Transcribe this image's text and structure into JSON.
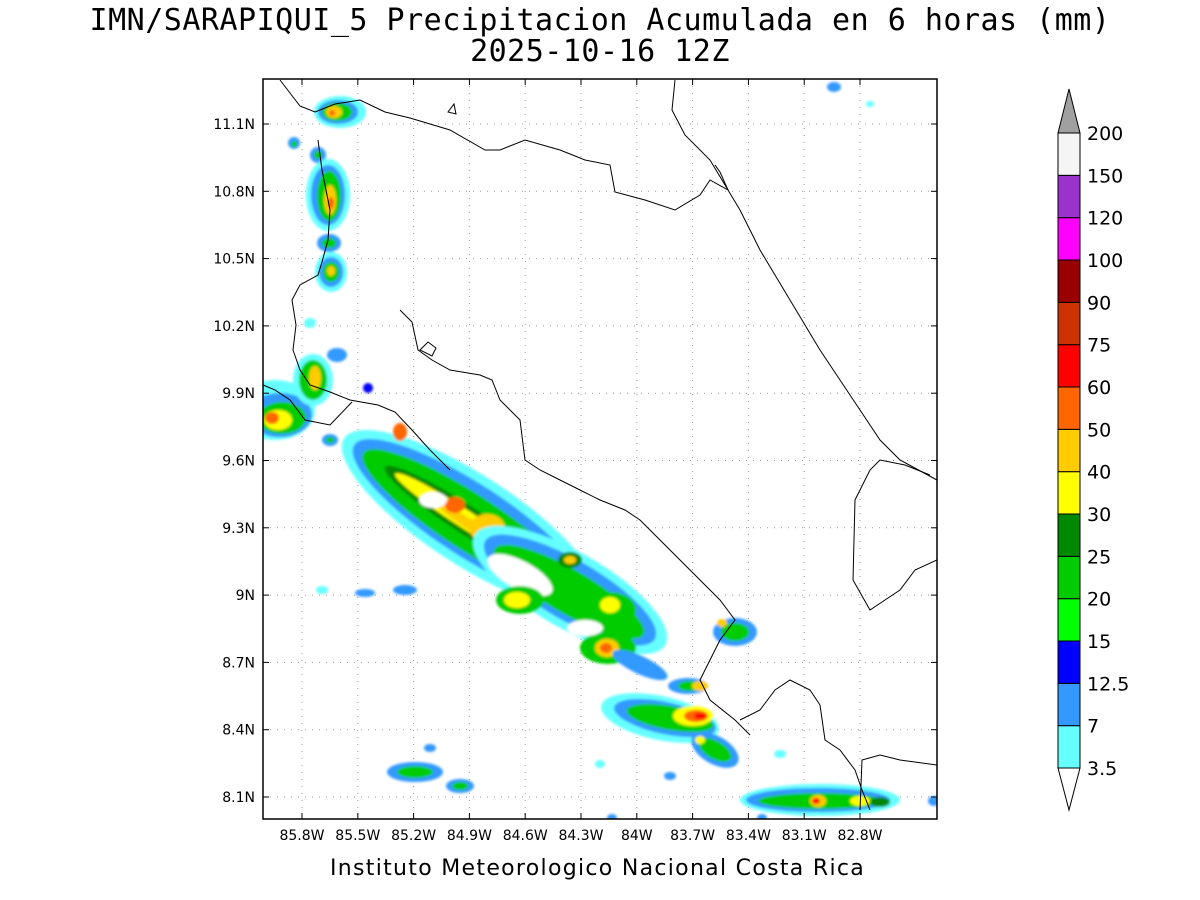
{
  "title": {
    "line1": "IMN/SARAPIQUI_5 Precipitacion Acumulada en 6 horas (mm)",
    "line2": "2025-10-16 12Z"
  },
  "footer": "Instituto Meteorologico Nacional Costa Rica",
  "map": {
    "lat_ticks": [
      "11.1N",
      "10.8N",
      "10.5N",
      "10.2N",
      "9.9N",
      "9.6N",
      "9.3N",
      "9N",
      "8.7N",
      "8.4N",
      "8.1N"
    ],
    "lon_ticks": [
      "85.8W",
      "85.5W",
      "85.2W",
      "84.9W",
      "84.6W",
      "84.3W",
      "84W",
      "83.7W",
      "83.4W",
      "83.1W",
      "82.8W"
    ],
    "grid": true
  },
  "colorbar": {
    "labels": [
      "3.5",
      "7",
      "12.5",
      "15",
      "20",
      "25",
      "30",
      "40",
      "50",
      "60",
      "75",
      "90",
      "100",
      "120",
      "150",
      "200"
    ],
    "colors": [
      "#66ffff",
      "#3399ff",
      "#0000ff",
      "#00ff00",
      "#00cc00",
      "#008800",
      "#ffff00",
      "#ffcc00",
      "#ff6600",
      "#ff0000",
      "#cc3300",
      "#990000",
      "#ff00ff",
      "#9933cc",
      "#f5f5f5"
    ],
    "over_color": "#a0a0a0"
  }
}
